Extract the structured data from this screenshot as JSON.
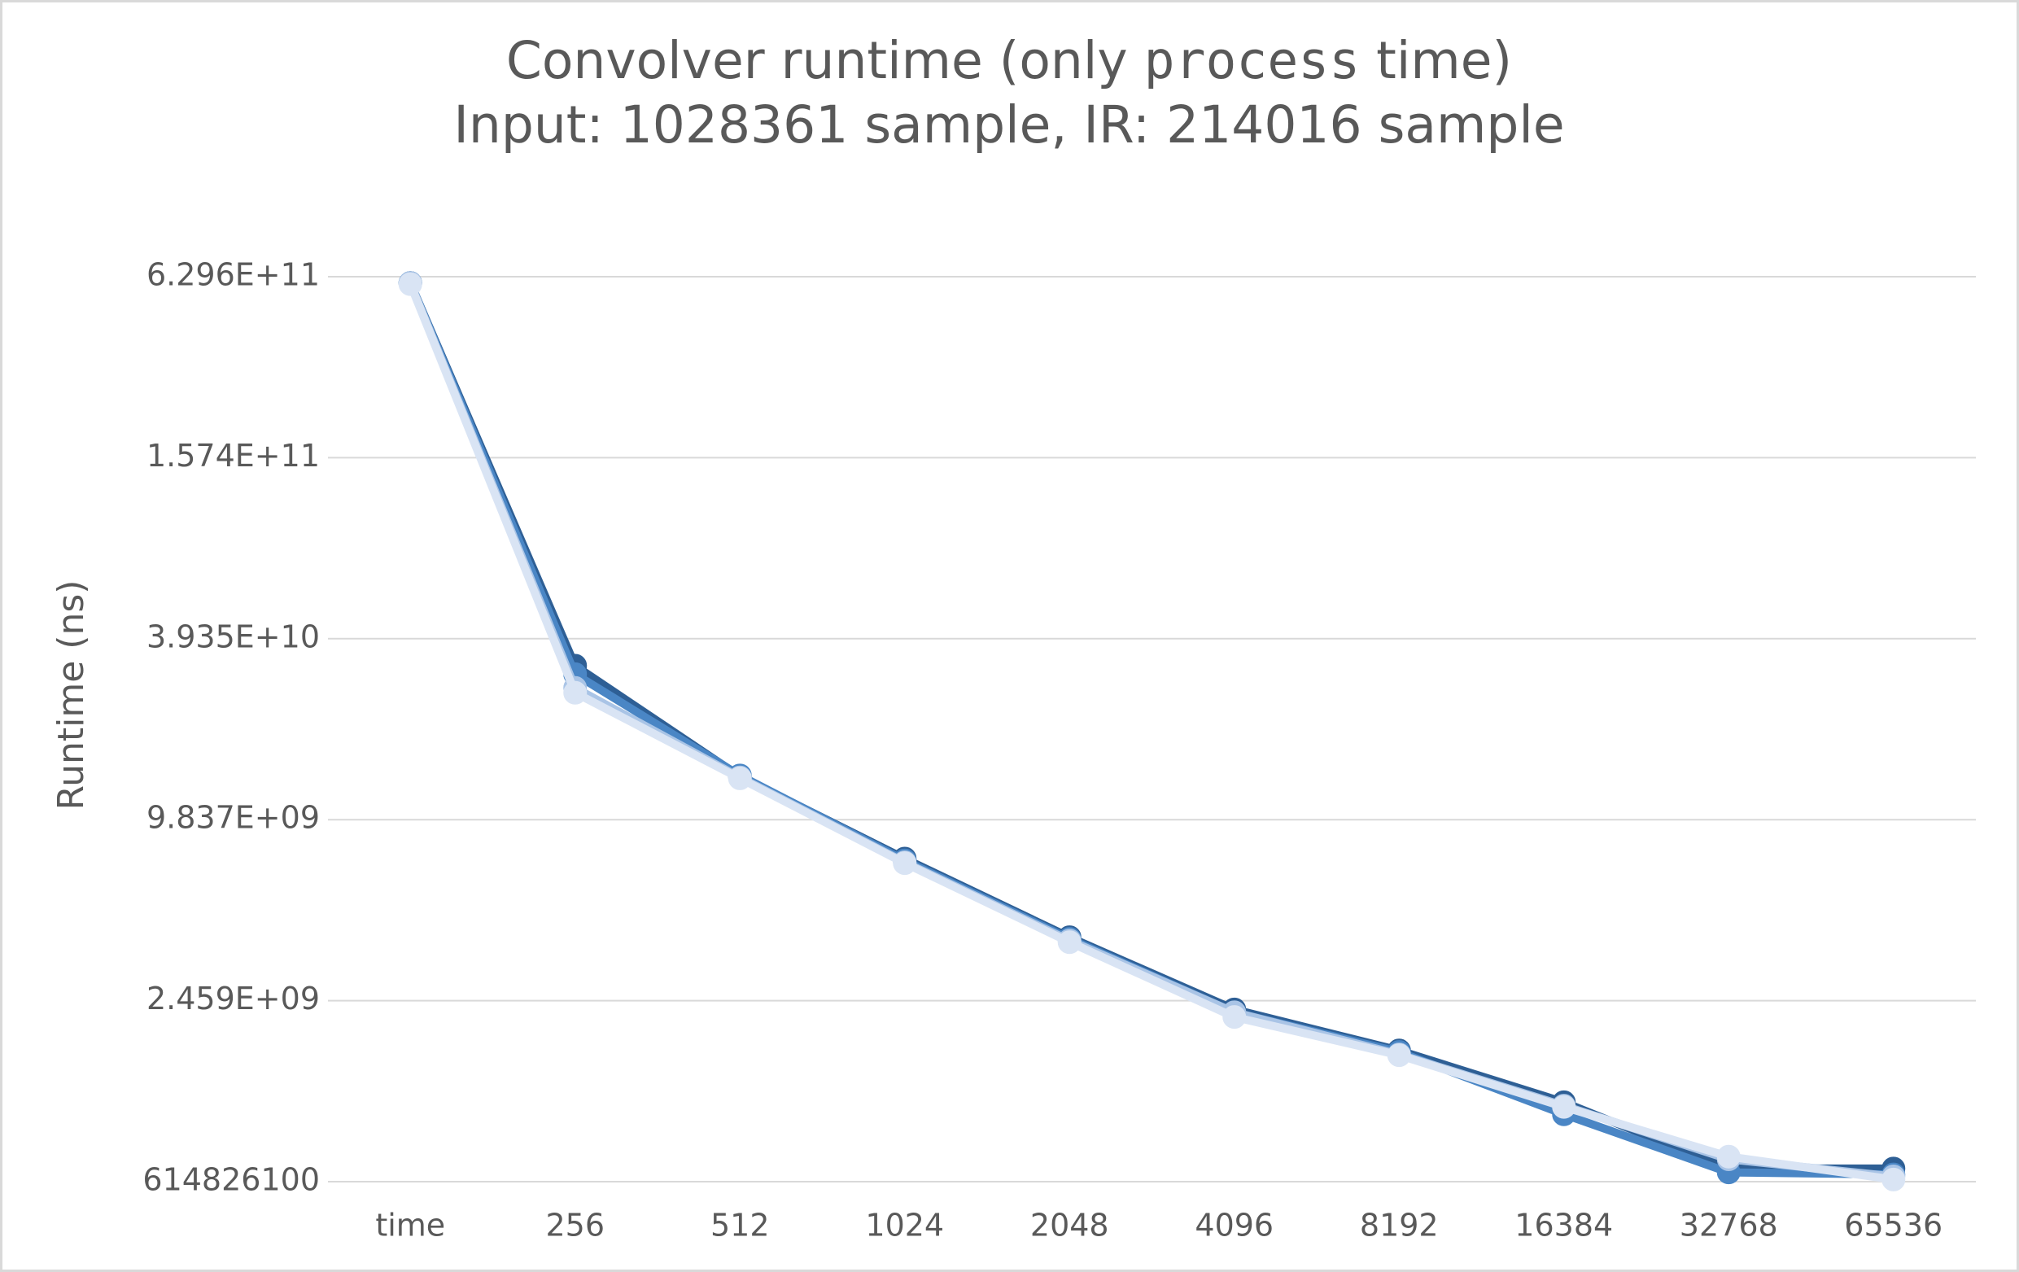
{
  "chart_data": {
    "type": "line",
    "title": [
      [
        "Convolver runtime (only ",
        "process",
        " time)"
      ],
      [
        "Input: 1028361 sample, IR: 214016 sample"
      ]
    ],
    "y_label": "Runtime (ns)",
    "categories": [
      "time",
      "256",
      "512",
      "1024",
      "2048",
      "4096",
      "8192",
      "16384",
      "32768",
      "65536"
    ],
    "series": [
      {
        "color": "#2e5f95",
        "values": [
          600000000000,
          32000000000,
          13700000000,
          7300000000,
          4000000000,
          2300000000,
          1680000000,
          1130000000,
          680000000,
          680000000
        ]
      },
      {
        "color": "#4a86c5",
        "values": [
          600000000000,
          30000000000,
          13800000000,
          7200000000,
          3950000000,
          2250000000,
          1660000000,
          1030000000,
          660000000,
          650000000
        ]
      },
      {
        "color": "#a9c4e6",
        "values": [
          600000000000,
          27000000000,
          13600000000,
          7100000000,
          3900000000,
          2250000000,
          1630000000,
          1100000000,
          730000000,
          640000000
        ]
      },
      {
        "color": "#d9e4f4",
        "values": [
          595000000000,
          26000000000,
          13500000000,
          7050000000,
          3850000000,
          2170000000,
          1620000000,
          1090000000,
          745000000,
          625000000
        ]
      }
    ],
    "ylim": [
      614826100,
      629600000000
    ],
    "yticks": [
      614826100,
      {
        "value": 2459000000,
        "label": "2.459E+09"
      },
      {
        "value": 9837000000,
        "label": "9.837E+09"
      },
      {
        "value": 39350000000,
        "label": "3.935E+10"
      },
      {
        "value": 157400000000,
        "label": "1.574E+11"
      },
      {
        "value": 629600000000,
        "label": "6.296E+11"
      }
    ],
    "log_scale": true,
    "grid": true
  }
}
